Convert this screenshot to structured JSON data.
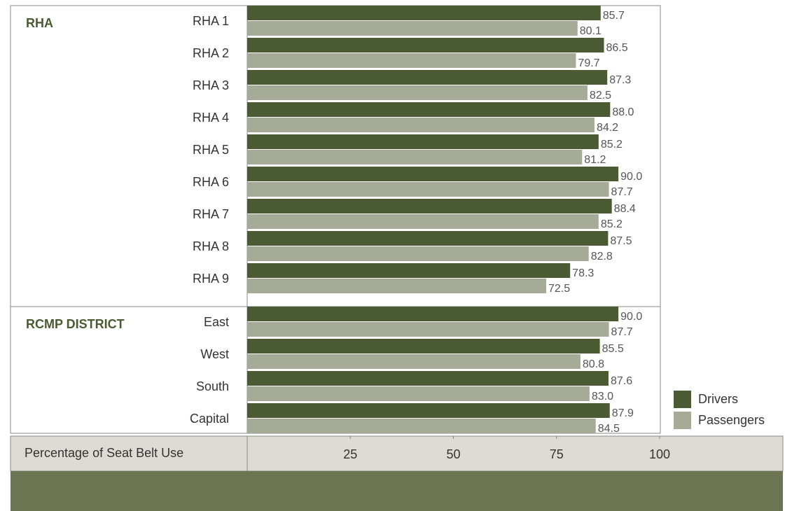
{
  "chart_data": {
    "type": "bar",
    "orientation": "horizontal",
    "categories": [
      "RHA 1",
      "RHA 2",
      "RHA 3",
      "RHA 4",
      "RHA 5",
      "RHA 6",
      "RHA 7",
      "RHA 8",
      "RHA 9",
      "East",
      "West",
      "South",
      "Capital"
    ],
    "groups": [
      {
        "label": "RHA",
        "size": 9
      },
      {
        "label": "RCMP DISTRICT",
        "size": 4
      }
    ],
    "series": [
      {
        "name": "Drivers",
        "color": "#4a5a32",
        "values": [
          85.7,
          86.5,
          87.3,
          88.0,
          85.2,
          90.0,
          88.4,
          87.5,
          78.3,
          90.0,
          85.5,
          87.6,
          87.9
        ],
        "value_labels": [
          "85.7",
          "86.5",
          "87.3",
          "88.0",
          "85.2",
          "90.0",
          "88.4",
          "87.5",
          "78.3",
          "90.0",
          "85.5",
          "87.6",
          "87.9"
        ]
      },
      {
        "name": "Passengers",
        "color": "#a6ab98",
        "values": [
          80.1,
          79.7,
          82.5,
          84.2,
          81.2,
          87.7,
          85.2,
          82.8,
          72.5,
          87.7,
          80.8,
          83.0,
          84.5
        ],
        "value_labels": [
          "80.1",
          "79.7",
          "82.5",
          "84.2",
          "81.2",
          "87.7",
          "85.2",
          "82.8",
          "72.5",
          "87.7",
          "80.8",
          "83.0",
          "84.5"
        ]
      }
    ],
    "xlabel": "Percentage of Seat Belt Use",
    "xlim": [
      0,
      100
    ],
    "xticks": [
      25,
      50,
      75,
      100
    ]
  }
}
